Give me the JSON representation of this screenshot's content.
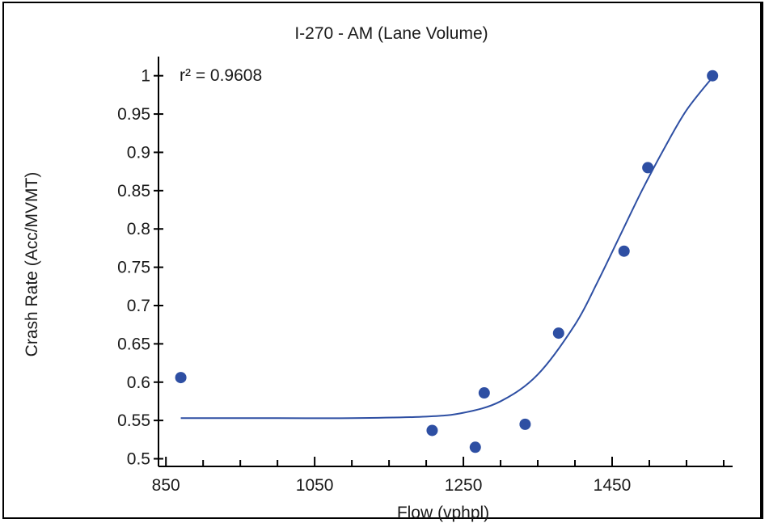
{
  "chart_data": {
    "type": "scatter",
    "title": "I-270 - AM (Lane Volume)",
    "xlabel": "Flow (vphpl)",
    "ylabel": "Crash Rate (Acc/MVMT)",
    "annotation": "r² = 0.9608",
    "xlim": [
      840,
      1612
    ],
    "ylim": [
      0.49,
      1.025
    ],
    "x_ticks": [
      850,
      1050,
      1250,
      1450
    ],
    "y_ticks": [
      0.5,
      0.55,
      0.6,
      0.65,
      0.7,
      0.75,
      0.8,
      0.85,
      0.9,
      0.95,
      1
    ],
    "x_minor_step": 50,
    "grid": false,
    "points": [
      {
        "x": 870,
        "y": 0.606
      },
      {
        "x": 1208,
        "y": 0.537
      },
      {
        "x": 1266,
        "y": 0.515
      },
      {
        "x": 1278,
        "y": 0.586
      },
      {
        "x": 1333,
        "y": 0.545
      },
      {
        "x": 1378,
        "y": 0.664
      },
      {
        "x": 1466,
        "y": 0.771
      },
      {
        "x": 1498,
        "y": 0.88
      },
      {
        "x": 1585,
        "y": 1.0
      }
    ],
    "fit_curve": {
      "x": [
        870,
        1000,
        1100,
        1200,
        1250,
        1300,
        1350,
        1400,
        1430,
        1460,
        1490,
        1520,
        1550,
        1585
      ],
      "y": [
        0.553,
        0.553,
        0.553,
        0.555,
        0.56,
        0.575,
        0.61,
        0.675,
        0.73,
        0.79,
        0.85,
        0.905,
        0.955,
        0.998
      ]
    },
    "colors": {
      "points": "#2e4fa3",
      "curve": "#2e4fa3",
      "axis": "#000000"
    }
  }
}
